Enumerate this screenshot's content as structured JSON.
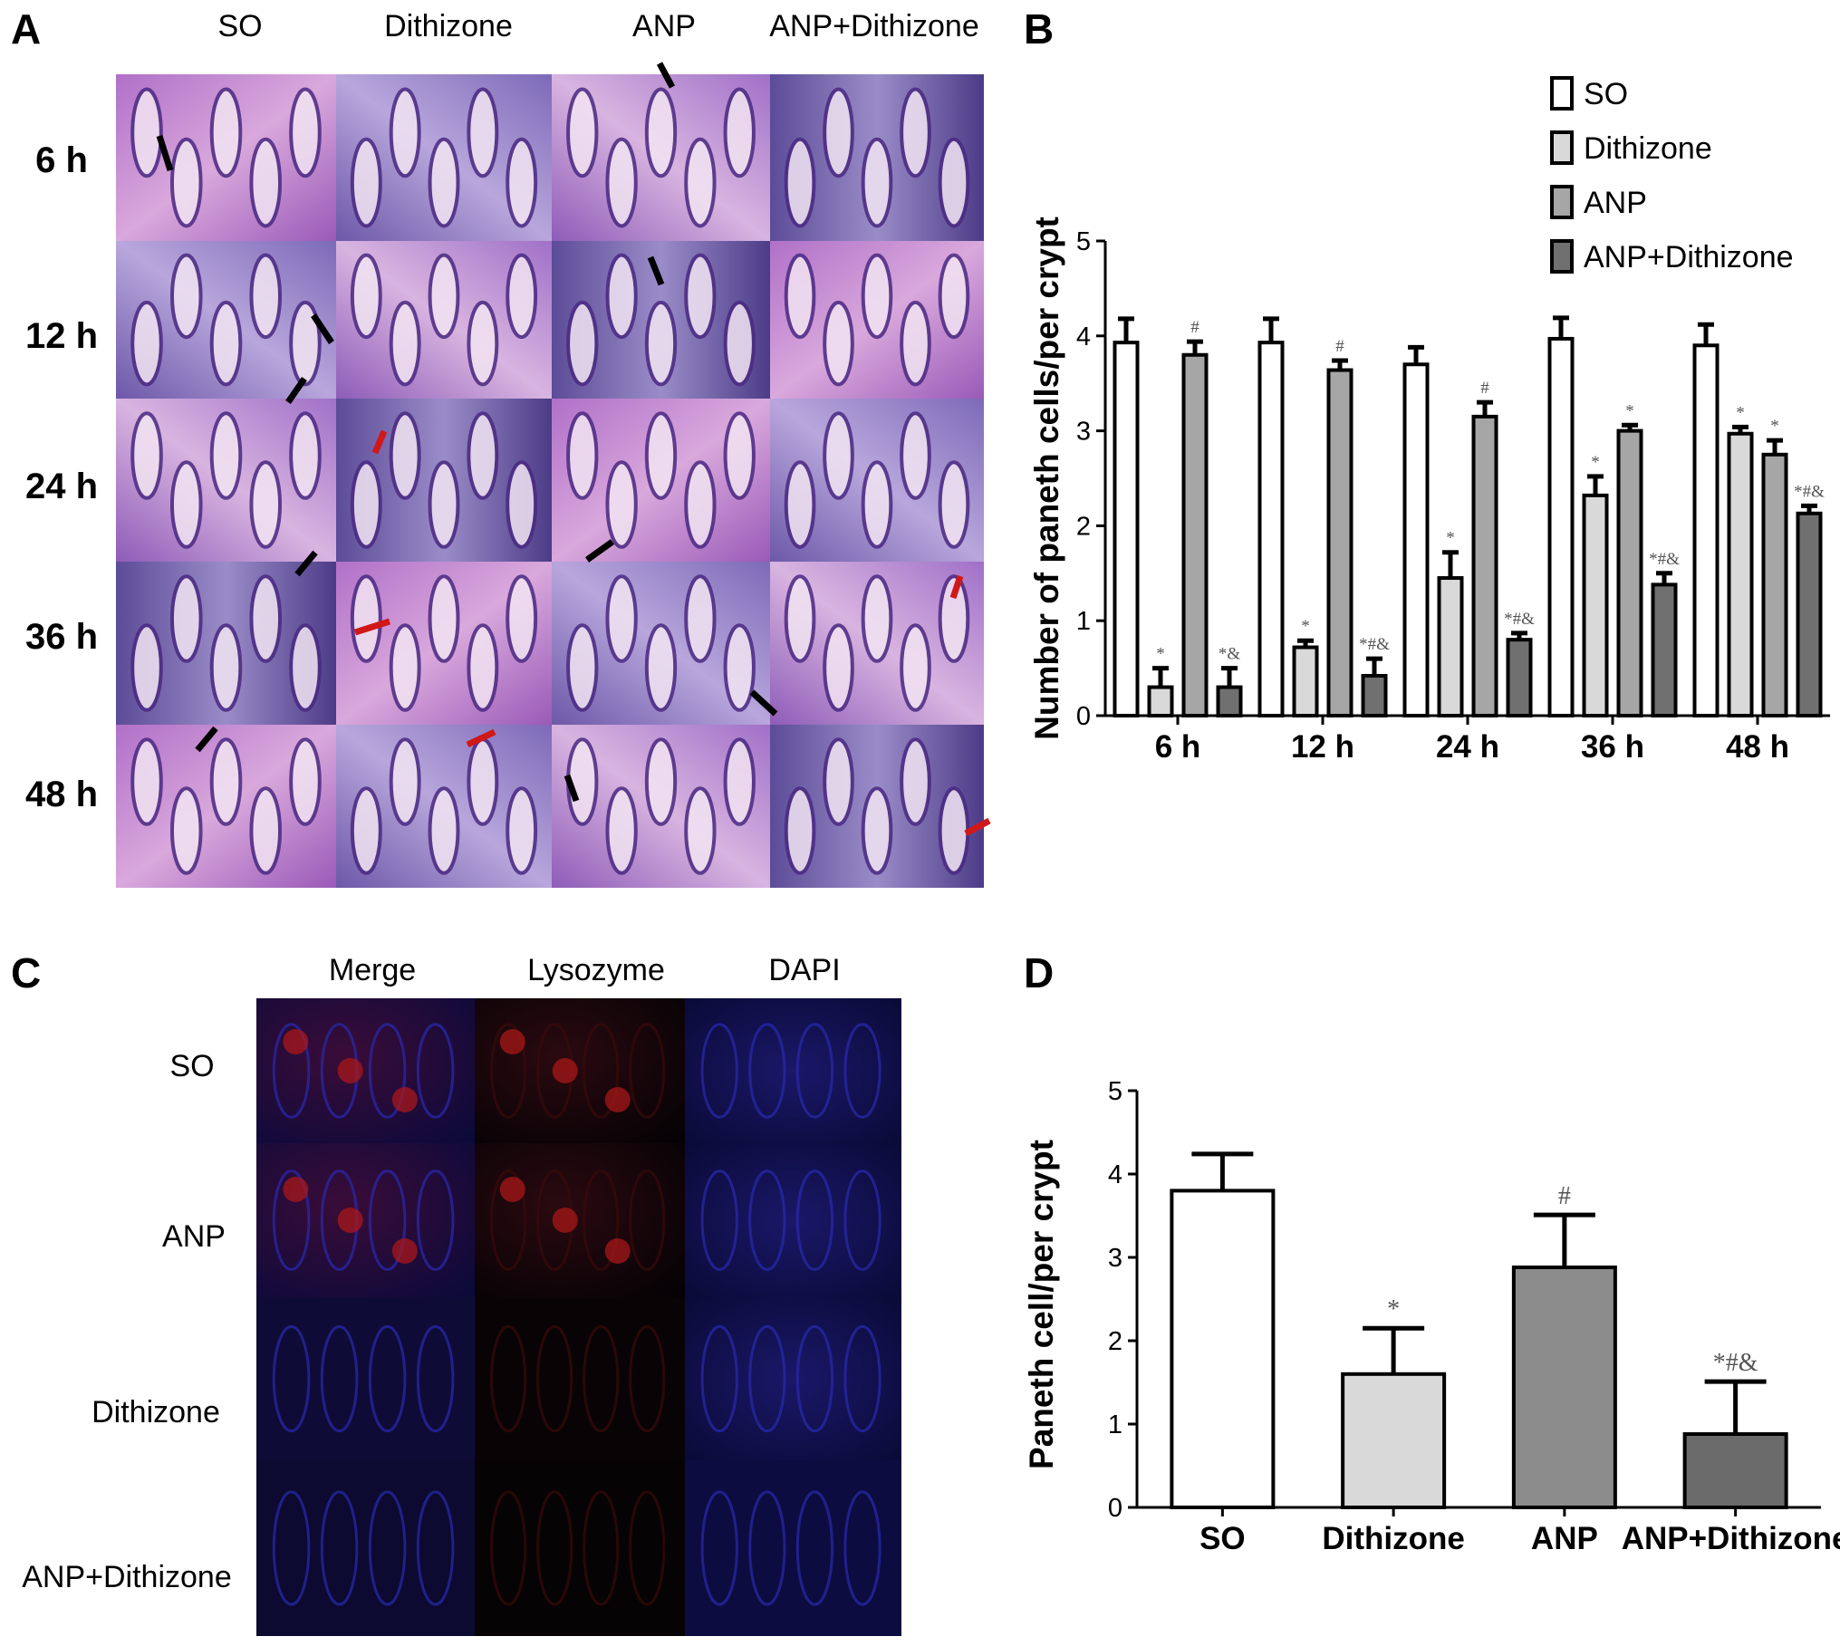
{
  "panels": {
    "A": {
      "letter": "A",
      "columns": [
        "SO",
        "Dithizone",
        "ANP",
        "ANP+Dithizone"
      ],
      "rows": [
        "6 h",
        "12 h",
        "24 h",
        "36 h",
        "48 h"
      ]
    },
    "B": {
      "letter": "B"
    },
    "C": {
      "letter": "C",
      "columns": [
        "Merge",
        "Lysozyme",
        "DAPI"
      ],
      "rows": [
        "SO",
        "ANP",
        "Dithizone",
        "ANP+Dithizone"
      ]
    },
    "D": {
      "letter": "D"
    }
  },
  "chart_data": [
    {
      "panel": "B",
      "type": "bar",
      "ylabel": "Number of paneth cells/per crypt",
      "ylim": [
        0,
        5
      ],
      "yticks": [
        "0",
        "1",
        "2",
        "3",
        "4",
        "5"
      ],
      "categories": [
        "6 h",
        "12 h",
        "24 h",
        "36 h",
        "48 h"
      ],
      "legend_position": "top-right",
      "series": [
        {
          "name": "SO",
          "color": "#ffffff",
          "values": [
            3.93,
            3.93,
            3.7,
            3.97,
            3.9
          ],
          "errors": [
            0.25,
            0.25,
            0.18,
            0.22,
            0.22
          ],
          "marks": [
            "",
            "",
            "",
            "",
            ""
          ]
        },
        {
          "name": "Dithizone",
          "color": "#d9d9d9",
          "values": [
            0.3,
            0.72,
            1.45,
            2.32,
            2.97
          ],
          "errors": [
            0.2,
            0.07,
            0.27,
            0.2,
            0.07
          ],
          "marks": [
            "*",
            "*",
            "*",
            "*",
            "*"
          ]
        },
        {
          "name": "ANP",
          "color": "#a6a6a6",
          "values": [
            3.8,
            3.64,
            3.15,
            3.0,
            2.75
          ],
          "errors": [
            0.14,
            0.1,
            0.15,
            0.06,
            0.15
          ],
          "marks": [
            "#",
            "#",
            "#",
            "*",
            "*"
          ]
        },
        {
          "name": "ANP+Dithizone",
          "color": "#707070",
          "values": [
            0.3,
            0.42,
            0.8,
            1.38,
            2.13
          ],
          "errors": [
            0.2,
            0.18,
            0.07,
            0.12,
            0.08
          ],
          "marks": [
            "*&",
            "*#&",
            "*#&",
            "*#&",
            "*#&"
          ]
        }
      ]
    },
    {
      "panel": "D",
      "type": "bar",
      "ylabel": "Paneth cell/per crypt",
      "ylim": [
        0,
        5
      ],
      "yticks": [
        "0",
        "1",
        "2",
        "3",
        "4",
        "5"
      ],
      "categories": [
        "SO",
        "Dithizone",
        "ANP",
        "ANP+Dithizone"
      ],
      "values": [
        3.8,
        1.6,
        2.88,
        0.88
      ],
      "errors": [
        0.44,
        0.55,
        0.63,
        0.63
      ],
      "colors": [
        "#ffffff",
        "#d9d9d9",
        "#8c8c8c",
        "#6b6b6b"
      ],
      "marks": [
        "",
        "*",
        "#",
        "*#&"
      ]
    }
  ]
}
